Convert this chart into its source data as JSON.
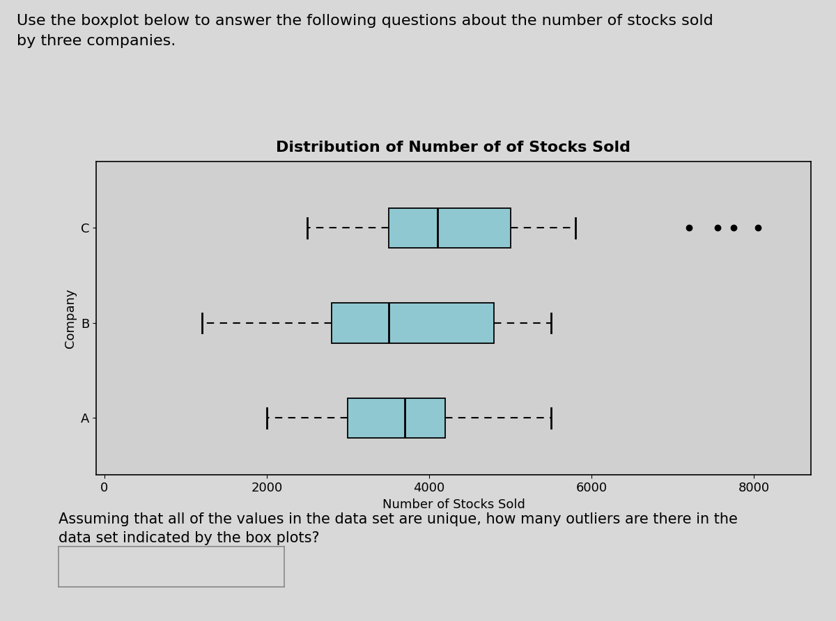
{
  "title": "Distribution of Number of of Stocks Sold",
  "xlabel": "Number of Stocks Sold",
  "ylabel": "Company",
  "companies": [
    "A",
    "B",
    "C"
  ],
  "xlim": [
    -100,
    8700
  ],
  "xticks": [
    0,
    2000,
    4000,
    6000,
    8000
  ],
  "fig_bg_color": "#d8d8d8",
  "plot_bg_color": "#d0d0d0",
  "box_color": "#90c8d2",
  "box_data": {
    "A": {
      "whislo": 2000,
      "q1": 3000,
      "med": 3700,
      "q3": 4200,
      "whishi": 5500,
      "fliers": []
    },
    "B": {
      "whislo": 1200,
      "q1": 2800,
      "med": 3500,
      "q3": 4800,
      "whishi": 5500,
      "fliers": []
    },
    "C": {
      "whislo": 2500,
      "q1": 3500,
      "med": 4100,
      "q3": 5000,
      "whishi": 5800,
      "fliers": [
        7200,
        7550,
        7750,
        8050
      ]
    }
  },
  "header_line1": "Use the boxplot below to answer the following questions about the number of stocks sold",
  "header_line2": "by three companies.",
  "footer_line1": "Assuming that all of the values in the data set are unique, how many outliers are there in the",
  "footer_line2": "data set indicated by the box plots?",
  "header_fontsize": 16,
  "footer_fontsize": 15,
  "title_fontsize": 16,
  "axis_label_fontsize": 13,
  "tick_fontsize": 13
}
